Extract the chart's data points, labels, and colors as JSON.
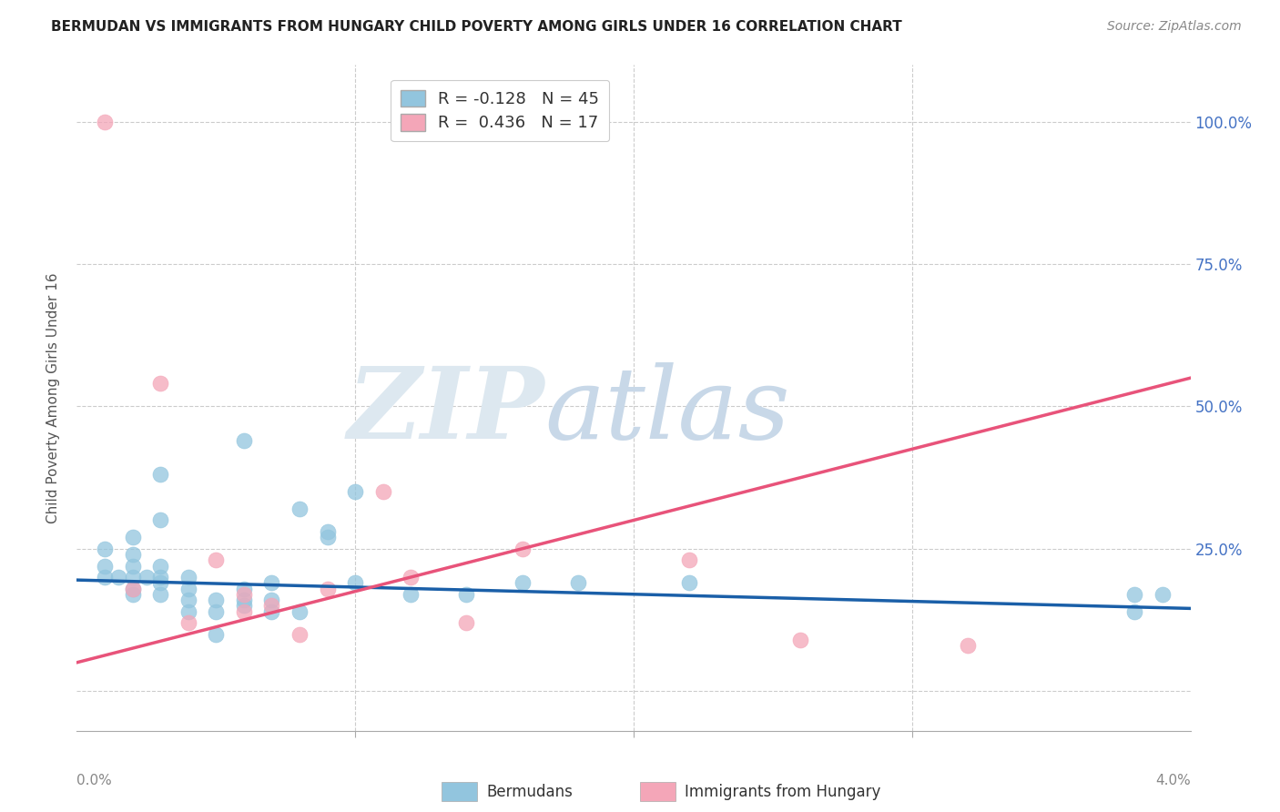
{
  "title": "BERMUDAN VS IMMIGRANTS FROM HUNGARY CHILD POVERTY AMONG GIRLS UNDER 16 CORRELATION CHART",
  "source": "Source: ZipAtlas.com",
  "ylabel": "Child Poverty Among Girls Under 16",
  "xlim": [
    0.0,
    0.04
  ],
  "ylim": [
    -0.07,
    1.1
  ],
  "legend_blue_r": "R = -0.128",
  "legend_blue_n": "N = 45",
  "legend_pink_r": "R =  0.436",
  "legend_pink_n": "N = 17",
  "blue_color": "#92c5de",
  "pink_color": "#f4a6b8",
  "blue_line_color": "#1a5fa8",
  "pink_line_color": "#e8537a",
  "blue_scatter_x": [
    0.001,
    0.001,
    0.001,
    0.0015,
    0.002,
    0.002,
    0.002,
    0.002,
    0.002,
    0.002,
    0.0025,
    0.003,
    0.003,
    0.003,
    0.003,
    0.003,
    0.003,
    0.004,
    0.004,
    0.004,
    0.004,
    0.005,
    0.005,
    0.005,
    0.006,
    0.006,
    0.006,
    0.006,
    0.007,
    0.007,
    0.007,
    0.008,
    0.008,
    0.009,
    0.009,
    0.01,
    0.01,
    0.012,
    0.014,
    0.016,
    0.018,
    0.022,
    0.038,
    0.038,
    0.039
  ],
  "blue_scatter_y": [
    0.2,
    0.22,
    0.25,
    0.2,
    0.17,
    0.18,
    0.2,
    0.22,
    0.24,
    0.27,
    0.2,
    0.17,
    0.19,
    0.2,
    0.22,
    0.3,
    0.38,
    0.14,
    0.16,
    0.18,
    0.2,
    0.1,
    0.14,
    0.16,
    0.15,
    0.16,
    0.18,
    0.44,
    0.14,
    0.16,
    0.19,
    0.14,
    0.32,
    0.27,
    0.28,
    0.19,
    0.35,
    0.17,
    0.17,
    0.19,
    0.19,
    0.19,
    0.14,
    0.17,
    0.17
  ],
  "pink_scatter_x": [
    0.001,
    0.002,
    0.003,
    0.004,
    0.005,
    0.006,
    0.006,
    0.007,
    0.008,
    0.009,
    0.011,
    0.012,
    0.014,
    0.016,
    0.022,
    0.026,
    0.032
  ],
  "pink_scatter_y": [
    1.0,
    0.18,
    0.54,
    0.12,
    0.23,
    0.14,
    0.17,
    0.15,
    0.1,
    0.18,
    0.35,
    0.2,
    0.12,
    0.25,
    0.23,
    0.09,
    0.08
  ],
  "blue_trend_x": [
    0.0,
    0.04
  ],
  "blue_trend_y": [
    0.195,
    0.145
  ],
  "pink_trend_x": [
    0.0,
    0.04
  ],
  "pink_trend_y": [
    0.05,
    0.55
  ],
  "yticks": [
    0.0,
    0.25,
    0.5,
    0.75,
    1.0
  ],
  "ytick_labels": [
    "",
    "25.0%",
    "50.0%",
    "75.0%",
    "100.0%"
  ],
  "xtick_positions": [
    0.01,
    0.02,
    0.03
  ],
  "title_fontsize": 11,
  "axis_label_fontsize": 11,
  "tick_fontsize": 11
}
